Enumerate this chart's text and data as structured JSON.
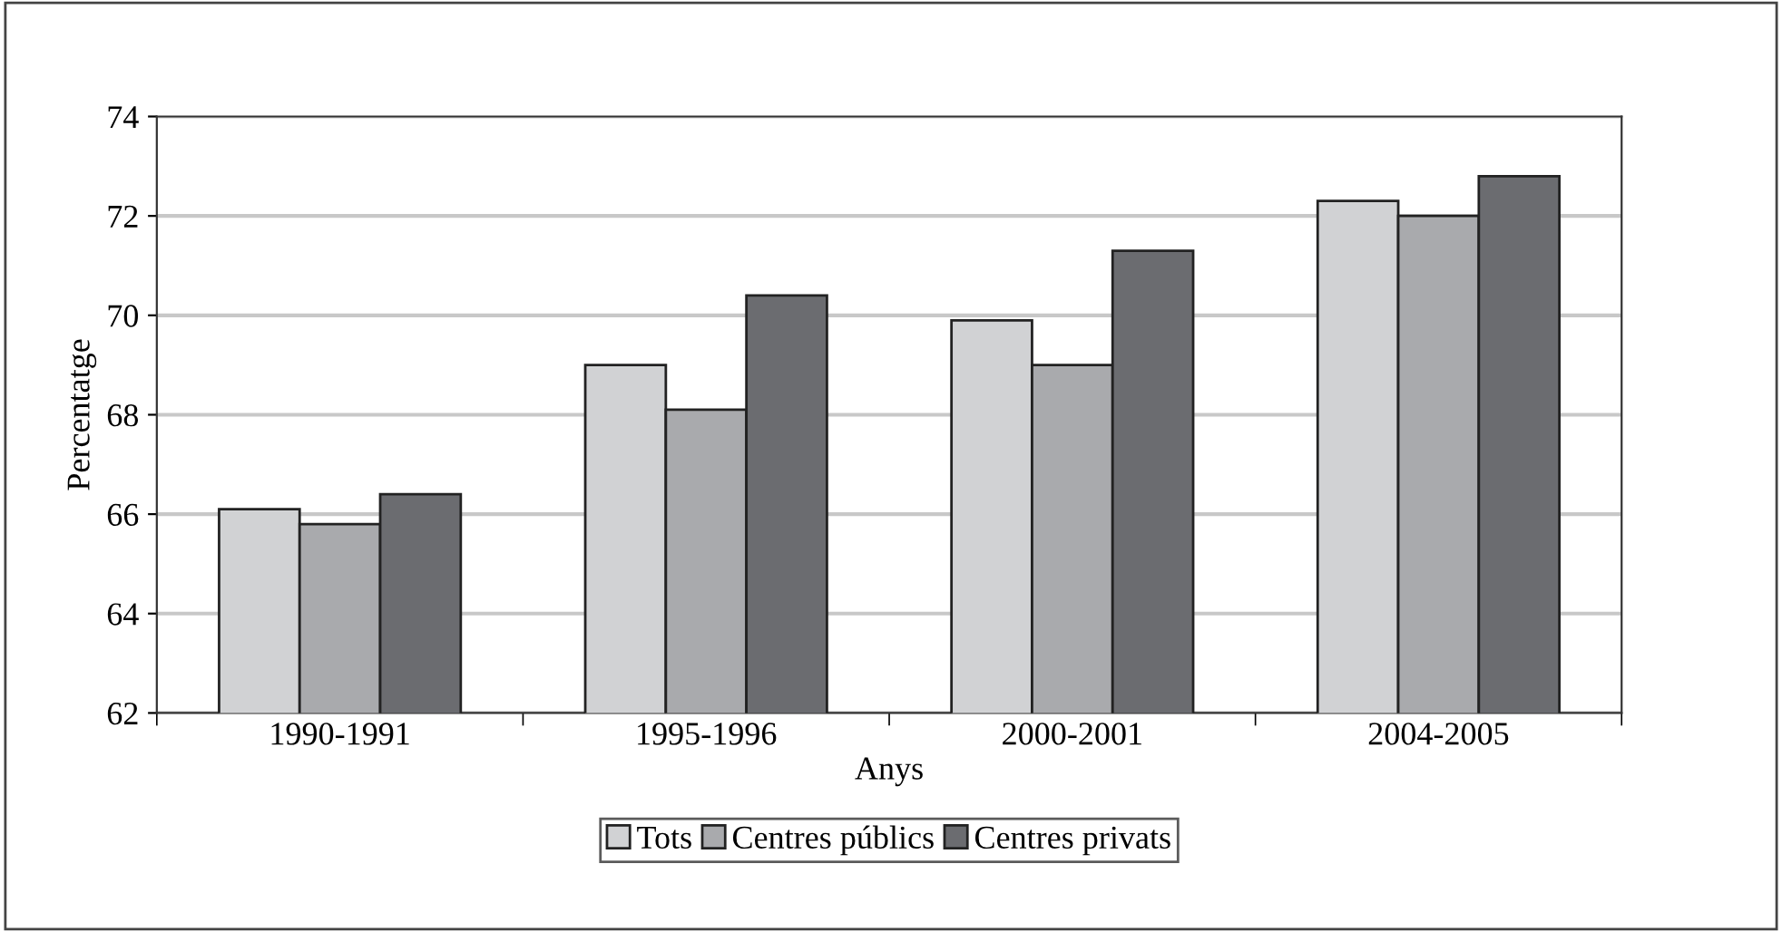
{
  "chart_data": {
    "type": "bar",
    "xlabel": "Anys",
    "ylabel": "Percentatge",
    "categories": [
      "1990-1991",
      "1995-1996",
      "2000-2001",
      "2004-2005"
    ],
    "series": [
      {
        "name": "Tots",
        "color": "#d1d2d4",
        "values": [
          66.1,
          69.0,
          69.9,
          72.3
        ]
      },
      {
        "name": "Centres públics",
        "color": "#a9aaad",
        "values": [
          65.8,
          68.1,
          69.0,
          72.0
        ]
      },
      {
        "name": "Centres privats",
        "color": "#6b6c70",
        "values": [
          66.4,
          70.4,
          71.3,
          72.8
        ]
      }
    ],
    "ylim": [
      62,
      74
    ],
    "yticks": [
      62,
      64,
      66,
      68,
      70,
      72,
      74
    ],
    "grid": "y",
    "legend": "bottom"
  }
}
